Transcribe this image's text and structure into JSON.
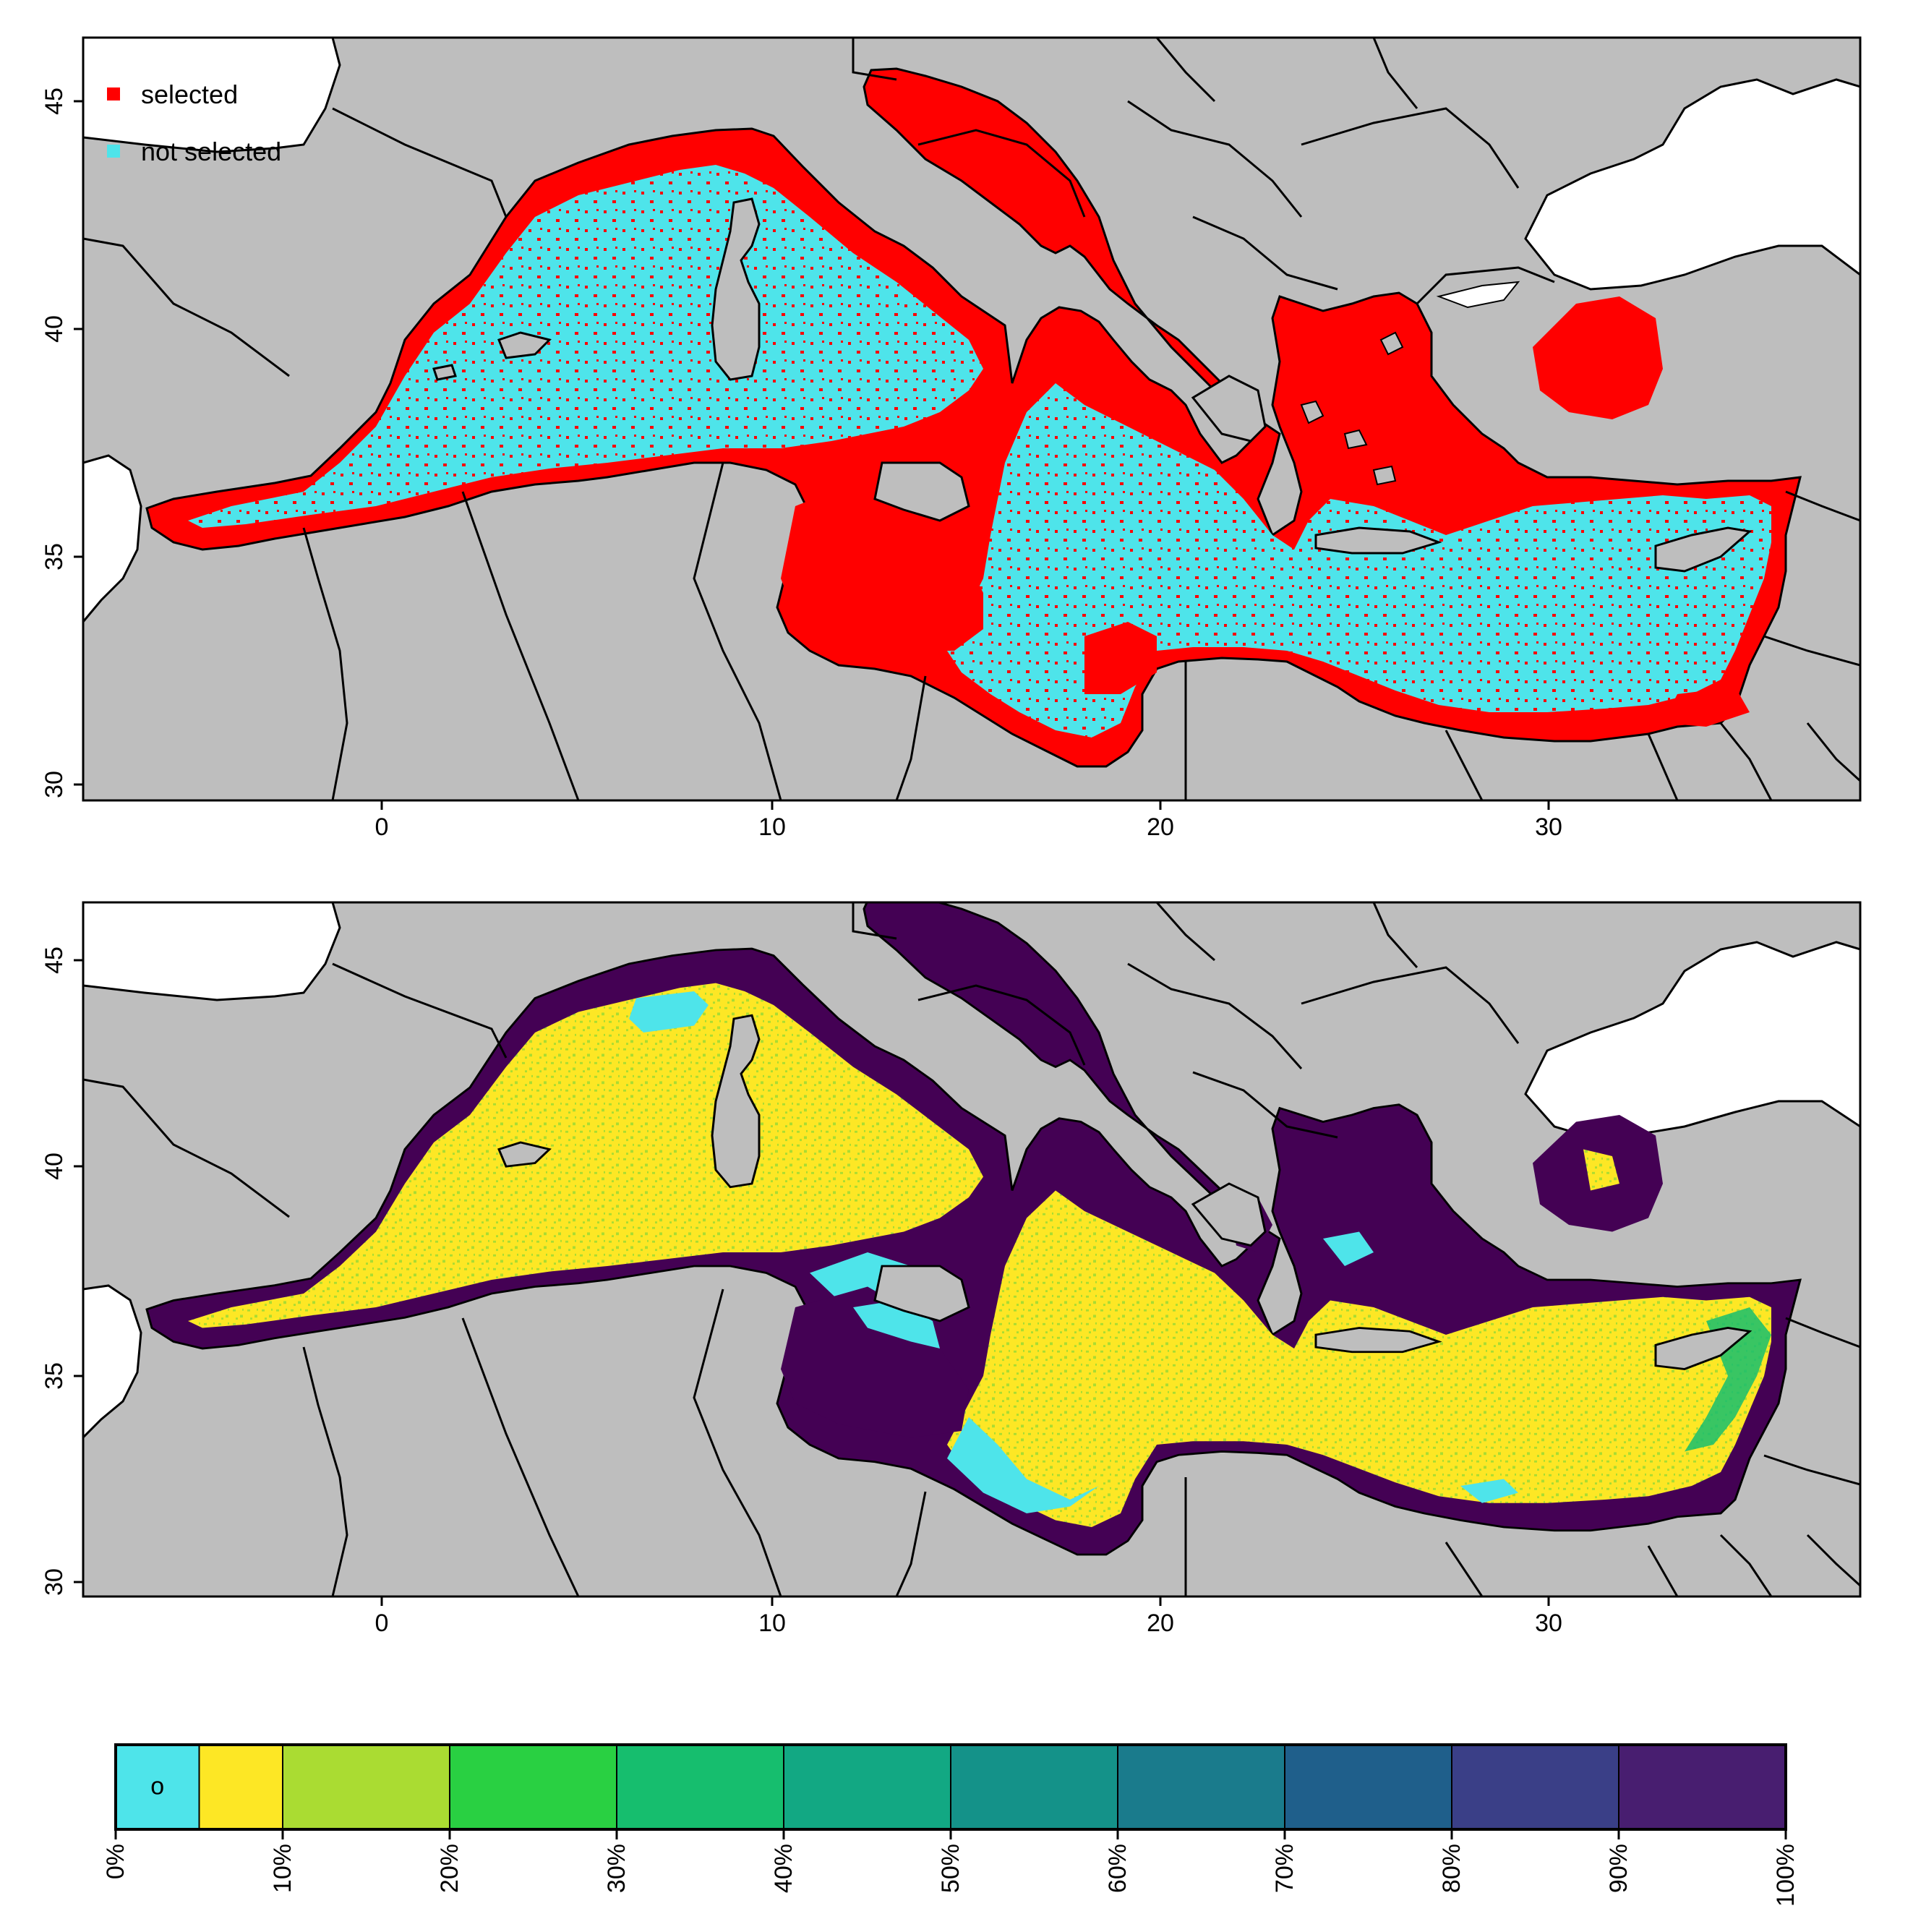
{
  "map_top": {
    "legend": [
      {
        "label": "selected",
        "color": "#ff0000"
      },
      {
        "label": "not selected",
        "color": "#4ee4ea"
      }
    ],
    "x_ticks": [
      "0",
      "10",
      "20",
      "30"
    ],
    "y_ticks": [
      "45",
      "40",
      "35",
      "30"
    ]
  },
  "map_bottom": {
    "x_ticks": [
      "0",
      "10",
      "20",
      "30"
    ],
    "y_ticks": [
      "45",
      "40",
      "35",
      "30"
    ]
  },
  "colorbar": {
    "first_cell_mark": "o",
    "labels": [
      "0%",
      "10%",
      "20%",
      "30%",
      "40%",
      "50%",
      "60%",
      "70%",
      "80%",
      "90%",
      "100%"
    ],
    "colors": [
      "#4ee4ea",
      "#fde725",
      "#aadc32",
      "#29d042",
      "#16be6e",
      "#12a883",
      "#149289",
      "#1a7b8c",
      "#1f5f8b",
      "#3a3f87",
      "#481e70",
      "#440154"
    ]
  },
  "colors": {
    "land": "#bebebe",
    "outside": "#ffffff",
    "selected": "#ff0000",
    "not_selected": "#4ee4ea",
    "high_pct": "#440154",
    "low_pct": "#fde725",
    "mid_low_pct": "#aadc32"
  }
}
